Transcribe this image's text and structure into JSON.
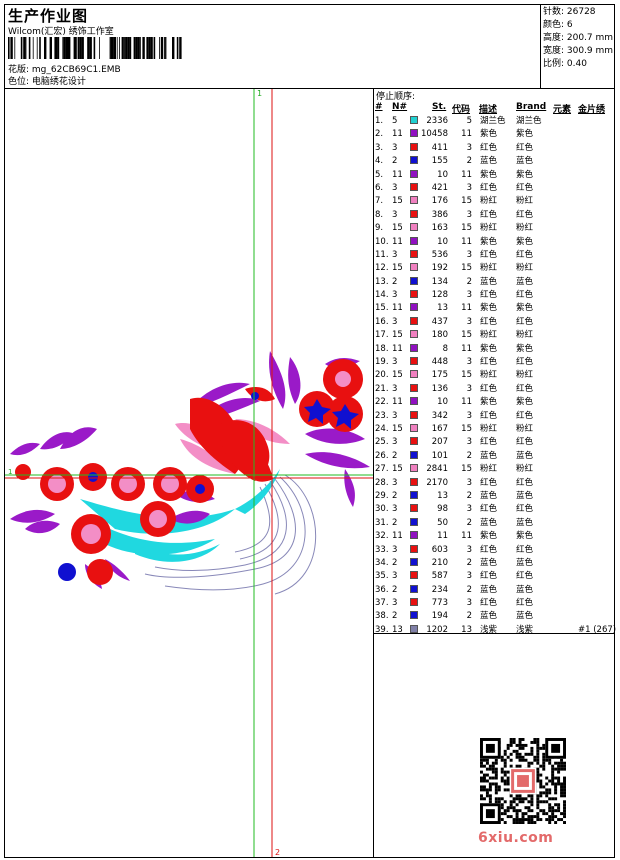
{
  "header": {
    "title": "生产作业图",
    "company": "Wilcom(汇宏) 绣饰工作室",
    "pattern_label": "花版: mg_62CB69C1.EMB",
    "color_pos_label": "色位: 电脑绣花设计"
  },
  "stats": [
    "针数: 26728",
    "颜色: 6",
    "高度: 200.7 mm",
    "宽度: 300.9 mm",
    "比例: 0.40"
  ],
  "guides": {
    "green_label": "1",
    "red_label": "2",
    "marker_label": "1"
  },
  "table": {
    "stop_title": "停止顺序:",
    "headers": {
      "idx": "#",
      "n": "N#",
      "st": "St.",
      "code": "代码",
      "desc": "描述",
      "brand": "Brand",
      "extra1": "元素",
      "extra2": "金片绣"
    },
    "rows": [
      {
        "i": "1.",
        "n": "5",
        "c": "#20d0d0",
        "st": "2336",
        "code": "5",
        "desc": "湖兰色",
        "brand": "湖兰色"
      },
      {
        "i": "2.",
        "n": "11",
        "c": "#9010c0",
        "st": "10458",
        "code": "11",
        "desc": "紫色",
        "brand": "紫色"
      },
      {
        "i": "3.",
        "n": "3",
        "c": "#e81010",
        "st": "411",
        "code": "3",
        "desc": "红色",
        "brand": "红色"
      },
      {
        "i": "4.",
        "n": "2",
        "c": "#1010d0",
        "st": "155",
        "code": "2",
        "desc": "蓝色",
        "brand": "蓝色"
      },
      {
        "i": "5.",
        "n": "11",
        "c": "#9010c0",
        "st": "10",
        "code": "11",
        "desc": "紫色",
        "brand": "紫色"
      },
      {
        "i": "6.",
        "n": "3",
        "c": "#e81010",
        "st": "421",
        "code": "3",
        "desc": "红色",
        "brand": "红色"
      },
      {
        "i": "7.",
        "n": "15",
        "c": "#f080c0",
        "st": "176",
        "code": "15",
        "desc": "粉红",
        "brand": "粉红"
      },
      {
        "i": "8.",
        "n": "3",
        "c": "#e81010",
        "st": "386",
        "code": "3",
        "desc": "红色",
        "brand": "红色"
      },
      {
        "i": "9.",
        "n": "15",
        "c": "#f080c0",
        "st": "163",
        "code": "15",
        "desc": "粉红",
        "brand": "粉红"
      },
      {
        "i": "10.",
        "n": "11",
        "c": "#9010c0",
        "st": "10",
        "code": "11",
        "desc": "紫色",
        "brand": "紫色"
      },
      {
        "i": "11.",
        "n": "3",
        "c": "#e81010",
        "st": "536",
        "code": "3",
        "desc": "红色",
        "brand": "红色"
      },
      {
        "i": "12.",
        "n": "15",
        "c": "#f080c0",
        "st": "192",
        "code": "15",
        "desc": "粉红",
        "brand": "粉红"
      },
      {
        "i": "13.",
        "n": "2",
        "c": "#1010d0",
        "st": "134",
        "code": "2",
        "desc": "蓝色",
        "brand": "蓝色"
      },
      {
        "i": "14.",
        "n": "3",
        "c": "#e81010",
        "st": "128",
        "code": "3",
        "desc": "红色",
        "brand": "红色"
      },
      {
        "i": "15.",
        "n": "11",
        "c": "#9010c0",
        "st": "13",
        "code": "11",
        "desc": "紫色",
        "brand": "紫色"
      },
      {
        "i": "16.",
        "n": "3",
        "c": "#e81010",
        "st": "437",
        "code": "3",
        "desc": "红色",
        "brand": "红色"
      },
      {
        "i": "17.",
        "n": "15",
        "c": "#f080c0",
        "st": "180",
        "code": "15",
        "desc": "粉红",
        "brand": "粉红"
      },
      {
        "i": "18.",
        "n": "11",
        "c": "#9010c0",
        "st": "8",
        "code": "11",
        "desc": "紫色",
        "brand": "紫色"
      },
      {
        "i": "19.",
        "n": "3",
        "c": "#e81010",
        "st": "448",
        "code": "3",
        "desc": "红色",
        "brand": "红色"
      },
      {
        "i": "20.",
        "n": "15",
        "c": "#f080c0",
        "st": "175",
        "code": "15",
        "desc": "粉红",
        "brand": "粉红"
      },
      {
        "i": "21.",
        "n": "3",
        "c": "#e81010",
        "st": "136",
        "code": "3",
        "desc": "红色",
        "brand": "红色"
      },
      {
        "i": "22.",
        "n": "11",
        "c": "#9010c0",
        "st": "10",
        "code": "11",
        "desc": "紫色",
        "brand": "紫色"
      },
      {
        "i": "23.",
        "n": "3",
        "c": "#e81010",
        "st": "342",
        "code": "3",
        "desc": "红色",
        "brand": "红色"
      },
      {
        "i": "24.",
        "n": "15",
        "c": "#f080c0",
        "st": "167",
        "code": "15",
        "desc": "粉红",
        "brand": "粉红"
      },
      {
        "i": "25.",
        "n": "3",
        "c": "#e81010",
        "st": "207",
        "code": "3",
        "desc": "红色",
        "brand": "红色"
      },
      {
        "i": "26.",
        "n": "2",
        "c": "#1010d0",
        "st": "101",
        "code": "2",
        "desc": "蓝色",
        "brand": "蓝色"
      },
      {
        "i": "27.",
        "n": "15",
        "c": "#f080c0",
        "st": "2841",
        "code": "15",
        "desc": "粉红",
        "brand": "粉红"
      },
      {
        "i": "28.",
        "n": "3",
        "c": "#e81010",
        "st": "2170",
        "code": "3",
        "desc": "红色",
        "brand": "红色"
      },
      {
        "i": "29.",
        "n": "2",
        "c": "#1010d0",
        "st": "13",
        "code": "2",
        "desc": "蓝色",
        "brand": "蓝色"
      },
      {
        "i": "30.",
        "n": "3",
        "c": "#e81010",
        "st": "98",
        "code": "3",
        "desc": "红色",
        "brand": "红色"
      },
      {
        "i": "31.",
        "n": "2",
        "c": "#1010d0",
        "st": "50",
        "code": "2",
        "desc": "蓝色",
        "brand": "蓝色"
      },
      {
        "i": "32.",
        "n": "11",
        "c": "#9010c0",
        "st": "11",
        "code": "11",
        "desc": "紫色",
        "brand": "紫色"
      },
      {
        "i": "33.",
        "n": "3",
        "c": "#e81010",
        "st": "603",
        "code": "3",
        "desc": "红色",
        "brand": "红色"
      },
      {
        "i": "34.",
        "n": "2",
        "c": "#1010d0",
        "st": "210",
        "code": "2",
        "desc": "蓝色",
        "brand": "蓝色"
      },
      {
        "i": "35.",
        "n": "3",
        "c": "#e81010",
        "st": "587",
        "code": "3",
        "desc": "红色",
        "brand": "红色"
      },
      {
        "i": "36.",
        "n": "2",
        "c": "#1010d0",
        "st": "234",
        "code": "2",
        "desc": "蓝色",
        "brand": "蓝色"
      },
      {
        "i": "37.",
        "n": "3",
        "c": "#e81010",
        "st": "773",
        "code": "3",
        "desc": "红色",
        "brand": "红色"
      },
      {
        "i": "38.",
        "n": "2",
        "c": "#1010d0",
        "st": "194",
        "code": "2",
        "desc": "蓝色",
        "brand": "蓝色"
      },
      {
        "i": "39.",
        "n": "13",
        "c": "#8080a8",
        "st": "1202",
        "code": "13",
        "desc": "浅紫",
        "brand": "浅紫",
        "extra": "#1 (267)"
      }
    ]
  },
  "watermark": {
    "logo_text": "6xiu.com"
  }
}
